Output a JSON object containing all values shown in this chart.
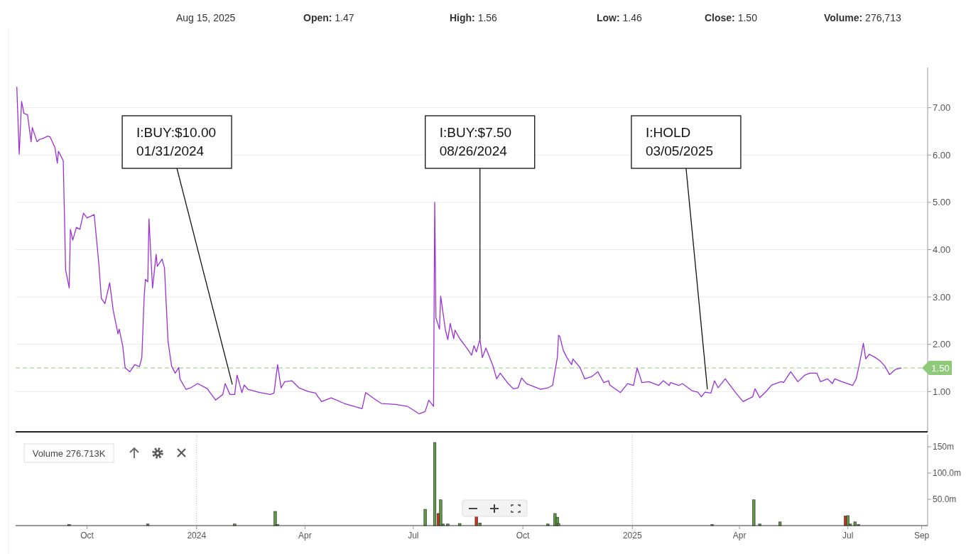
{
  "chart_data": [
    {
      "type": "line",
      "color": "#9b30d9",
      "annotations": [
        "Aug 15, 2025",
        "Open: 1.47",
        "High: 1.56",
        "Low: 1.46",
        "Close: 1.50",
        "Volume: 276,713",
        {
          "text": "I:BUY:$10.00\n01/31/2024",
          "x": "2024-01-31",
          "y": 1.15
        },
        {
          "text": "I:BUY:$7.50\n08/26/2024",
          "x": "2024-08-26",
          "y": 2.11
        },
        {
          "text": "I:HOLD\n03/05/2025",
          "x": "2025-03-05",
          "y": 1.05
        }
      ],
      "x": [
        "2023-08-03",
        "2023-08-05",
        "2023-08-07",
        "2023-08-09",
        "2023-08-12",
        "2023-08-15",
        "2023-08-16",
        "2023-08-20",
        "2023-08-22",
        "2023-08-25",
        "2023-08-29",
        "2023-08-31",
        "2023-09-04",
        "2023-09-06",
        "2023-09-07",
        "2023-09-10",
        "2023-09-11",
        "2023-09-13",
        "2023-09-16",
        "2023-09-17",
        "2023-09-19",
        "2023-09-22",
        "2023-09-25",
        "2023-09-28",
        "2023-10-01",
        "2023-10-07",
        "2023-10-11",
        "2023-10-13",
        "2023-10-16",
        "2023-10-20",
        "2023-10-23",
        "2023-10-27",
        "2023-10-28",
        "2023-10-31",
        "2023-11-02",
        "2023-11-06",
        "2023-11-10",
        "2023-11-14",
        "2023-11-16",
        "2023-11-18",
        "2023-11-19",
        "2023-11-21",
        "2023-11-22",
        "2023-11-25",
        "2023-11-28",
        "2023-11-29",
        "2023-12-03",
        "2023-12-05",
        "2023-12-08",
        "2023-12-11",
        "2023-12-14",
        "2023-12-17",
        "2023-12-18",
        "2023-12-23",
        "2023-12-27",
        "2024-01-02",
        "2024-01-10",
        "2024-01-17",
        "2024-01-23",
        "2024-01-25",
        "2024-01-29",
        "2024-02-02",
        "2024-02-04",
        "2024-02-08",
        "2024-02-10",
        "2024-02-13",
        "2024-02-23",
        "2024-03-03",
        "2024-03-06",
        "2024-03-09",
        "2024-03-12",
        "2024-03-15",
        "2024-03-21",
        "2024-03-27",
        "2024-04-04",
        "2024-04-10",
        "2024-04-12",
        "2024-04-15",
        "2024-04-23",
        "2024-05-04",
        "2024-05-19",
        "2024-05-22",
        "2024-05-28",
        "2024-06-04",
        "2024-06-16",
        "2024-06-26",
        "2024-07-06",
        "2024-07-11",
        "2024-07-14",
        "2024-07-18",
        "2024-07-19",
        "2024-07-20",
        "2024-07-23",
        "2024-07-24",
        "2024-07-28",
        "2024-07-30",
        "2024-08-01",
        "2024-08-04",
        "2024-08-05",
        "2024-08-09",
        "2024-08-15",
        "2024-08-19",
        "2024-08-21",
        "2024-08-23",
        "2024-08-26",
        "2024-08-28",
        "2024-08-31",
        "2024-09-06",
        "2024-09-09",
        "2024-09-12",
        "2024-09-18",
        "2024-09-23",
        "2024-09-27",
        "2024-09-30",
        "2024-10-04",
        "2024-10-16",
        "2024-10-22",
        "2024-10-26",
        "2024-10-30",
        "2024-10-31",
        "2024-11-01",
        "2024-11-04",
        "2024-11-07",
        "2024-11-11",
        "2024-11-12",
        "2024-11-18",
        "2024-11-22",
        "2024-11-28",
        "2024-12-03",
        "2024-12-08",
        "2024-12-12",
        "2024-12-13",
        "2024-12-22",
        "2024-12-28",
        "2025-01-02",
        "2025-01-05",
        "2025-01-08",
        "2025-01-09",
        "2025-01-15",
        "2025-01-23",
        "2025-01-27",
        "2025-02-01",
        "2025-02-02",
        "2025-02-09",
        "2025-02-12",
        "2025-02-20",
        "2025-02-25",
        "2025-02-28",
        "2025-03-03",
        "2025-03-08",
        "2025-03-11",
        "2025-03-14",
        "2025-03-20",
        "2025-03-29",
        "2025-04-04",
        "2025-04-12",
        "2025-04-14",
        "2025-04-18",
        "2025-04-24",
        "2025-04-28",
        "2025-05-06",
        "2025-05-08",
        "2025-05-14",
        "2025-05-20",
        "2025-05-26",
        "2025-05-30",
        "2025-06-05",
        "2025-06-08",
        "2025-06-14",
        "2025-06-18",
        "2025-06-20",
        "2025-06-26",
        "2025-07-05",
        "2025-07-08",
        "2025-07-11",
        "2025-07-14",
        "2025-07-16",
        "2025-07-19",
        "2025-07-24",
        "2025-07-28",
        "2025-08-01",
        "2025-08-05",
        "2025-08-10",
        "2025-08-15"
      ],
      "values": [
        7.44,
        6.02,
        7.13,
        6.88,
        6.85,
        6.28,
        6.58,
        6.28,
        6.33,
        6.35,
        6.4,
        6.38,
        6.16,
        5.83,
        6.08,
        5.93,
        5.88,
        3.57,
        3.19,
        4.43,
        4.2,
        4.47,
        4.43,
        4.77,
        4.67,
        4.74,
        3.67,
        2.97,
        2.86,
        3.3,
        2.71,
        2.22,
        2.32,
        1.96,
        1.5,
        1.42,
        1.57,
        1.53,
        1.72,
        3.02,
        3.37,
        3.32,
        4.65,
        3.19,
        3.9,
        3.65,
        3.8,
        3.62,
        2.07,
        1.54,
        1.39,
        1.51,
        1.27,
        1.05,
        1.08,
        1.17,
        1.06,
        0.82,
        0.94,
        1.17,
        0.94,
        0.94,
        1.35,
        0.98,
        1.14,
        1.05,
        0.98,
        0.94,
        0.97,
        1.57,
        1.08,
        1.21,
        1.23,
        1.08,
        1.0,
        0.97,
        0.89,
        0.79,
        0.87,
        0.75,
        0.64,
        0.98,
        0.87,
        0.75,
        0.73,
        0.69,
        0.53,
        0.58,
        0.82,
        0.69,
        5.0,
        2.56,
        2.32,
        3.02,
        2.3,
        2.1,
        2.44,
        2.12,
        2.3,
        2.12,
        1.92,
        1.77,
        1.97,
        1.84,
        2.11,
        1.72,
        1.92,
        1.54,
        1.27,
        1.39,
        1.19,
        1.06,
        1.08,
        1.29,
        1.17,
        1.05,
        1.08,
        1.13,
        1.72,
        2.19,
        2.17,
        1.87,
        1.72,
        1.57,
        1.69,
        1.51,
        1.27,
        1.32,
        1.42,
        1.19,
        1.23,
        1.14,
        0.98,
        1.17,
        1.13,
        1.5,
        1.27,
        1.19,
        1.21,
        1.13,
        1.23,
        1.13,
        1.19,
        1.13,
        1.17,
        1.02,
        0.99,
        0.89,
        0.99,
        0.97,
        1.23,
        1.08,
        1.27,
        0.97,
        0.79,
        0.89,
        1.06,
        0.87,
        1.02,
        1.14,
        1.21,
        1.19,
        1.42,
        1.21,
        1.35,
        1.39,
        1.39,
        1.21,
        1.27,
        1.17,
        1.27,
        1.21,
        1.13,
        1.27,
        1.62,
        2.02,
        1.69,
        1.79,
        1.72,
        1.65,
        1.54,
        1.36,
        1.47,
        1.5
      ],
      "xlim": [
        "2023-08-02",
        "2025-09-06"
      ],
      "ylim": [
        0.15,
        7.85
      ],
      "yticks": [
        {
          "value": 1,
          "label": "1.00"
        },
        {
          "value": 2,
          "label": "2.00"
        },
        {
          "value": 3,
          "label": "3.00"
        },
        {
          "value": 4,
          "label": "4.00"
        },
        {
          "value": 5,
          "label": "5.00"
        },
        {
          "value": 6,
          "label": "6.00"
        },
        {
          "value": 7,
          "label": "7.00"
        }
      ],
      "grid": "y",
      "tick_labels": "y",
      "ref_lines": [
        {
          "axis": "y",
          "value": 1.5,
          "label": "1.50",
          "color": "#8fc97a",
          "line_style": "dashed"
        }
      ]
    },
    {
      "type": "bar",
      "annotations": [
        "Volume 276.713K"
      ],
      "x": [
        "2023-09-16",
        "2023-11-21",
        "2024-02-02",
        "2024-03-07",
        "2024-03-09",
        "2024-07-11",
        "2024-07-19",
        "2024-07-22",
        "2024-07-24",
        "2024-07-26",
        "2024-07-30",
        "2024-08-09",
        "2024-08-23",
        "2024-08-26",
        "2024-10-22",
        "2024-10-28",
        "2024-10-30",
        "2024-10-31",
        "2025-03-09",
        "2025-04-13",
        "2025-04-18",
        "2025-05-05",
        "2025-06-29",
        "2025-07-01",
        "2025-07-03",
        "2025-07-07",
        "2025-07-10"
      ],
      "values": [
        2,
        3,
        3,
        27,
        2,
        31,
        158,
        23,
        49,
        3,
        3,
        4,
        20,
        5,
        3,
        23,
        16,
        4,
        2,
        49,
        3,
        7,
        18,
        19,
        3,
        7,
        2
      ],
      "colors": [
        "#5f9a45",
        "#5f9a45",
        "#5f9a45",
        "#5f9a45",
        "#5f9a45",
        "#5f9a45",
        "#5f9a45",
        "#d0311f",
        "#5f9a45",
        "#5f9a45",
        "#5f9a45",
        "#5f9a45",
        "#d0311f",
        "#5f9a45",
        "#5f9a45",
        "#5f9a45",
        "#5f9a45",
        "#5f9a45",
        "#5f9a45",
        "#5f9a45",
        "#5f9a45",
        "#5f9a45",
        "#d0311f",
        "#5f9a45",
        "#5f9a45",
        "#5f9a45",
        "#5f9a45"
      ],
      "xlim": [
        "2023-08-02",
        "2025-09-06"
      ],
      "xticks": [
        {
          "value": "2023-10-01",
          "label": "Oct"
        },
        {
          "value": "2024-01-01",
          "label": "2024"
        },
        {
          "value": "2024-04-01",
          "label": "Apr"
        },
        {
          "value": "2024-07-01",
          "label": "Jul"
        },
        {
          "value": "2024-10-01",
          "label": "Oct"
        },
        {
          "value": "2025-01-01",
          "label": "2025"
        },
        {
          "value": "2025-04-01",
          "label": "Apr"
        },
        {
          "value": "2025-07-01",
          "label": "Jul"
        },
        {
          "value": "2025-09-01",
          "label": "Sep"
        }
      ],
      "ylim": [
        0,
        173
      ],
      "yticks": [
        {
          "value": 50,
          "label": "50.0m"
        },
        {
          "value": 100,
          "label": "100.0m"
        },
        {
          "value": 150,
          "label": "150m"
        }
      ]
    }
  ]
}
